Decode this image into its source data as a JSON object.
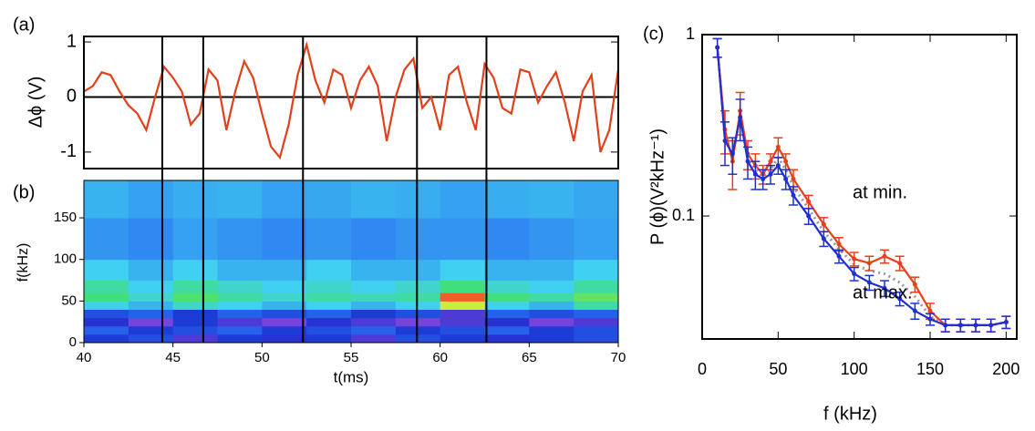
{
  "chart_data": [
    {
      "type": "line",
      "panel_label": "(a)",
      "y_label": "Δϕ (V)",
      "xlim": [
        40,
        70
      ],
      "ylim": [
        -1.3,
        1.1
      ],
      "yticks": [
        1,
        0,
        -1
      ],
      "zero_line": true,
      "vlines": [
        44.4,
        46.7,
        52.3,
        58.7,
        62.6
      ],
      "x": [
        40,
        40.5,
        41,
        41.5,
        42,
        42.5,
        43,
        43.5,
        44,
        44.5,
        45,
        45.5,
        46,
        46.5,
        47,
        47.5,
        48,
        48.5,
        49,
        49.5,
        50,
        50.5,
        51,
        51.5,
        52,
        52.5,
        53,
        53.5,
        54,
        54.5,
        55,
        55.5,
        56,
        56.5,
        57,
        57.5,
        58,
        58.5,
        59,
        59.5,
        60,
        60.5,
        61,
        61.5,
        62,
        62.5,
        63,
        63.5,
        64,
        64.5,
        65,
        65.5,
        66,
        66.5,
        67,
        67.5,
        68,
        68.5,
        69,
        69.5,
        70
      ],
      "values": [
        0.1,
        0.2,
        0.45,
        0.4,
        0.1,
        -0.15,
        -0.3,
        -0.6,
        0.0,
        0.55,
        0.35,
        0.1,
        -0.5,
        -0.3,
        0.5,
        0.3,
        -0.6,
        0.1,
        0.65,
        0.35,
        -0.3,
        -0.9,
        -1.1,
        -0.5,
        0.4,
        0.95,
        0.3,
        -0.1,
        0.5,
        0.4,
        -0.2,
        0.3,
        0.55,
        0.2,
        -0.8,
        0.0,
        0.5,
        0.7,
        -0.2,
        0.0,
        -0.6,
        0.4,
        0.55,
        -0.1,
        -0.6,
        0.6,
        0.35,
        -0.2,
        -0.3,
        0.5,
        0.45,
        -0.1,
        0.2,
        0.45,
        -0.1,
        -0.8,
        0.1,
        0.4,
        -1.0,
        -0.6,
        0.5
      ],
      "color": "#e0401a"
    },
    {
      "type": "heatmap",
      "panel_label": "(b)",
      "y_label": "f(kHz)",
      "x_label": "t(ms)",
      "xlim": [
        40,
        70
      ],
      "ylim": [
        0,
        195
      ],
      "xticks": [
        40,
        45,
        50,
        55,
        60,
        65,
        70
      ],
      "yticks": [
        0,
        50,
        100,
        150
      ],
      "x_edges": [
        40,
        42.5,
        45,
        47.5,
        50,
        52.5,
        55,
        57.5,
        60,
        62.5,
        65,
        67.5,
        70
      ],
      "y_edges": [
        0,
        10,
        20,
        30,
        40,
        50,
        60,
        75,
        100,
        150,
        195
      ],
      "colormap": [
        "#9a4de0",
        "#1a2fd0",
        "#2a6ef0",
        "#40d0f0",
        "#40e070",
        "#f0f030",
        "#f02020"
      ],
      "zlim": [
        0,
        1
      ],
      "z": [
        [
          0.2,
          0.25,
          0.1,
          0.2,
          0.15,
          0.2,
          0.1,
          0.25,
          0.2,
          0.15,
          0.2,
          0.25
        ],
        [
          0.3,
          0.2,
          0.25,
          0.3,
          0.2,
          0.25,
          0.3,
          0.2,
          0.25,
          0.3,
          0.2,
          0.25
        ],
        [
          0.15,
          0.05,
          0.2,
          0.1,
          0.05,
          0.15,
          0.1,
          0.05,
          0.1,
          0.15,
          0.05,
          0.1
        ],
        [
          0.25,
          0.3,
          0.2,
          0.3,
          0.25,
          0.3,
          0.2,
          0.25,
          0.1,
          0.3,
          0.25,
          0.3
        ],
        [
          0.5,
          0.45,
          0.55,
          0.5,
          0.45,
          0.5,
          0.45,
          0.5,
          0.8,
          0.5,
          0.45,
          0.6
        ],
        [
          0.65,
          0.55,
          0.68,
          0.6,
          0.55,
          0.6,
          0.58,
          0.6,
          0.95,
          0.65,
          0.6,
          0.7
        ],
        [
          0.6,
          0.5,
          0.6,
          0.55,
          0.5,
          0.55,
          0.5,
          0.55,
          0.65,
          0.55,
          0.5,
          0.6
        ],
        [
          0.5,
          0.45,
          0.5,
          0.45,
          0.45,
          0.5,
          0.45,
          0.45,
          0.5,
          0.45,
          0.45,
          0.5
        ],
        [
          0.4,
          0.38,
          0.42,
          0.4,
          0.38,
          0.4,
          0.38,
          0.4,
          0.4,
          0.38,
          0.4,
          0.42
        ],
        [
          0.45,
          0.42,
          0.44,
          0.45,
          0.42,
          0.43,
          0.45,
          0.44,
          0.42,
          0.44,
          0.45,
          0.43
        ]
      ]
    },
    {
      "type": "line",
      "panel_label": "(c)",
      "y_label": "P (ϕ)(V²kHz⁻¹)",
      "x_label": "f (kHz)",
      "xlim": [
        0,
        207
      ],
      "ylim": [
        0.021,
        1
      ],
      "ylog": true,
      "xticks": [
        0,
        50,
        100,
        150,
        200
      ],
      "yticks": [
        1,
        0.1
      ],
      "x": [
        10,
        15,
        20,
        25,
        30,
        35,
        40,
        45,
        50,
        55,
        60,
        70,
        80,
        90,
        100,
        110,
        120,
        130,
        140,
        150,
        160,
        170,
        180,
        190,
        200
      ],
      "series": [
        {
          "color": "#999999",
          "dotted": true,
          "values": [
            0.85,
            0.28,
            0.21,
            0.36,
            0.21,
            0.18,
            0.165,
            0.18,
            0.21,
            0.18,
            0.145,
            0.11,
            0.082,
            0.066,
            0.054,
            0.05,
            0.048,
            0.043,
            0.036,
            0.028,
            0.025,
            0.025,
            0.025,
            0.025,
            0.026
          ]
        },
        {
          "name": "at min.",
          "color": "#e8401c",
          "values": [
            0.85,
            0.3,
            0.2,
            0.38,
            0.22,
            0.19,
            0.17,
            0.2,
            0.24,
            0.2,
            0.16,
            0.12,
            0.09,
            0.07,
            0.058,
            0.055,
            0.06,
            0.055,
            0.042,
            0.03,
            0.025,
            0.025,
            0.025,
            0.025,
            0.026
          ],
          "errors": [
            0.1,
            0.08,
            0.06,
            0.1,
            0.04,
            0.03,
            0.02,
            0.02,
            0.03,
            0.02,
            0.02,
            0.01,
            0.008,
            0.006,
            0.005,
            0.005,
            0.005,
            0.005,
            0.004,
            0.003,
            0.002,
            0.002,
            0.002,
            0.002,
            0.002
          ]
        },
        {
          "name": "at max.",
          "color": "#2030d0",
          "values": [
            0.85,
            0.26,
            0.22,
            0.35,
            0.2,
            0.17,
            0.16,
            0.17,
            0.19,
            0.16,
            0.13,
            0.1,
            0.075,
            0.06,
            0.048,
            0.043,
            0.04,
            0.035,
            0.03,
            0.027,
            0.025,
            0.025,
            0.025,
            0.025,
            0.026
          ],
          "errors": [
            0.1,
            0.07,
            0.05,
            0.09,
            0.04,
            0.03,
            0.02,
            0.02,
            0.02,
            0.02,
            0.015,
            0.01,
            0.007,
            0.005,
            0.004,
            0.004,
            0.004,
            0.003,
            0.003,
            0.002,
            0.002,
            0.002,
            0.002,
            0.002,
            0.002
          ]
        }
      ]
    }
  ]
}
